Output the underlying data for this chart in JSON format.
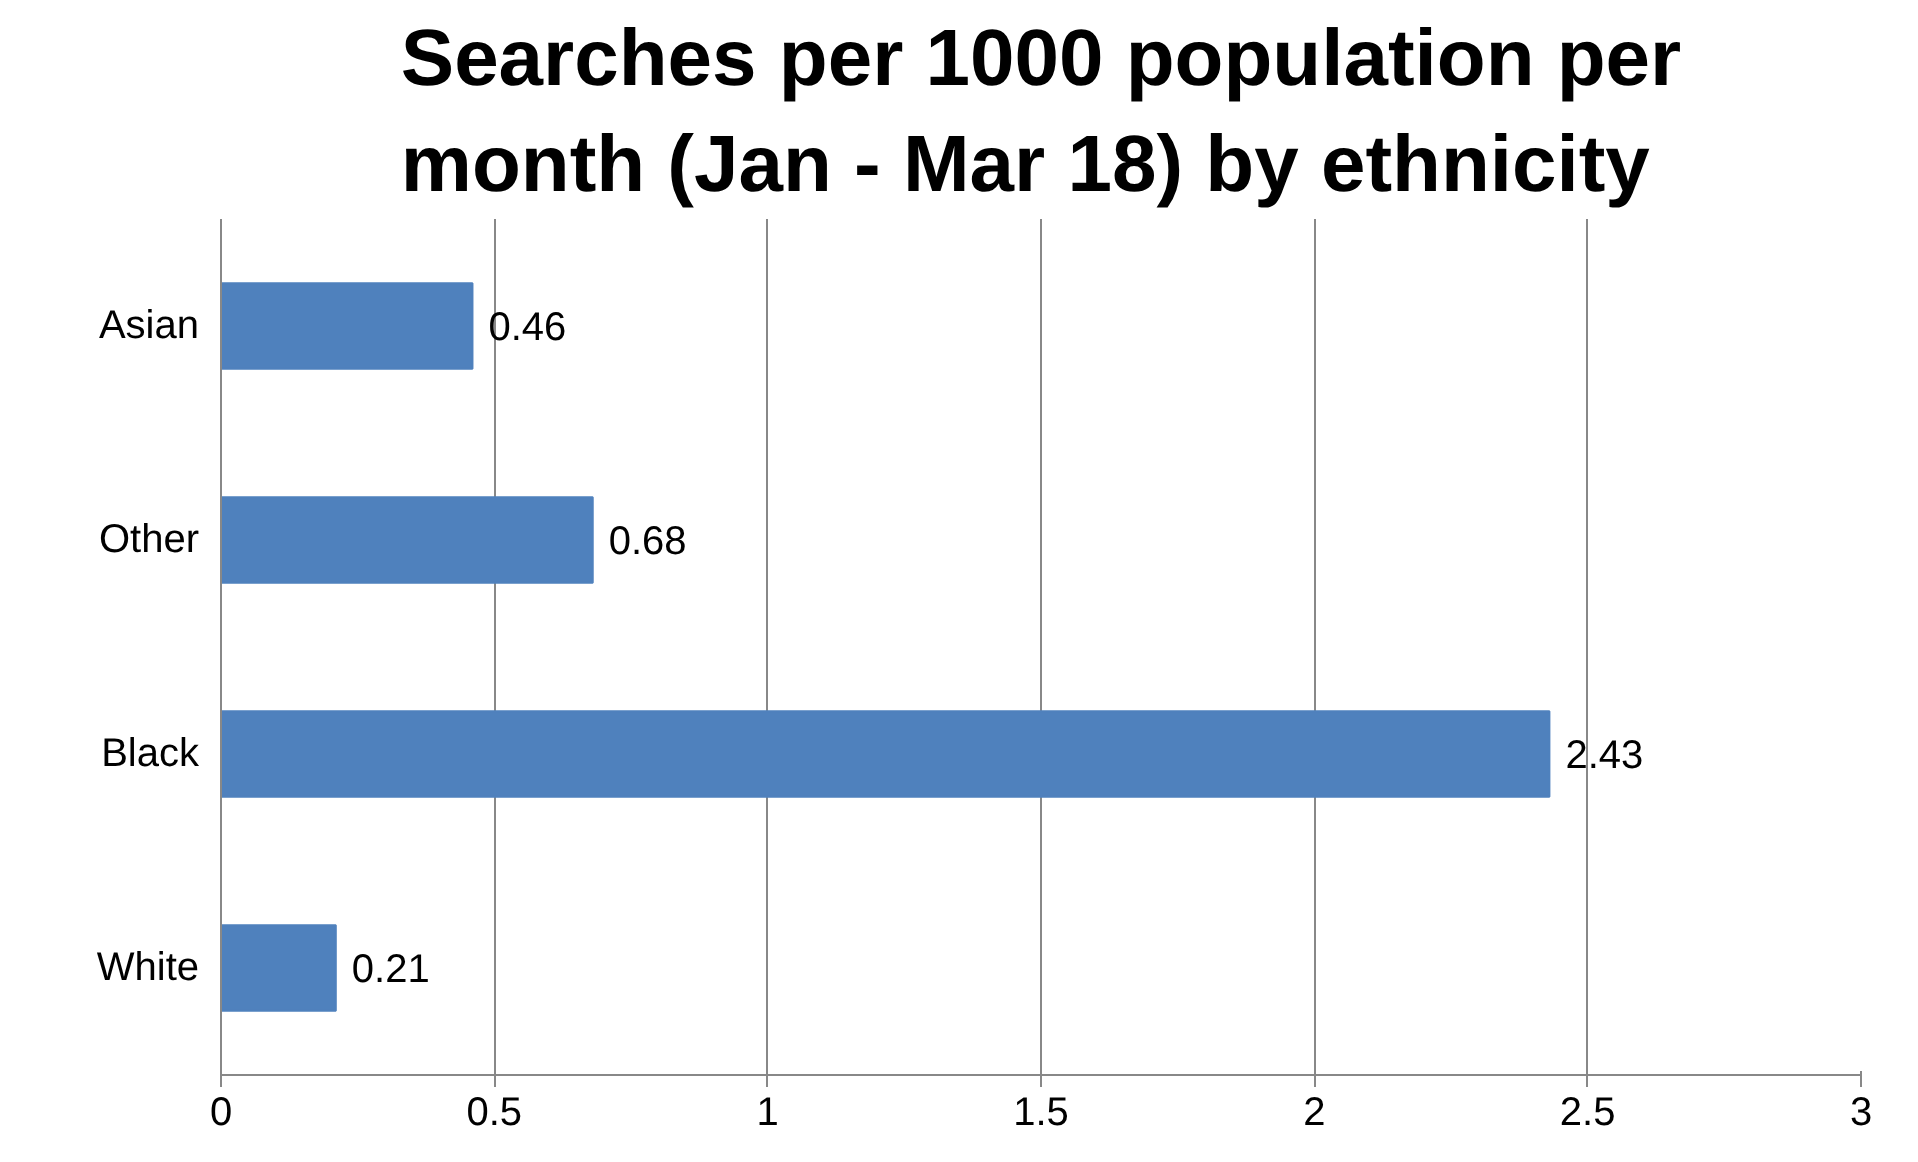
{
  "chart_data": {
    "type": "bar",
    "orientation": "horizontal",
    "title": "Searches per 1000 population per month (Jan - Mar 18) by ethnicity",
    "categories": [
      "Asian",
      "Other",
      "Black",
      "White"
    ],
    "values": [
      0.46,
      0.68,
      2.43,
      0.21
    ],
    "color": "#4f81bd",
    "xlim": [
      0,
      3
    ],
    "xticks": [
      0,
      0.5,
      1,
      1.5,
      2,
      2.5,
      3
    ],
    "grid": "x",
    "data_labels": true
  }
}
